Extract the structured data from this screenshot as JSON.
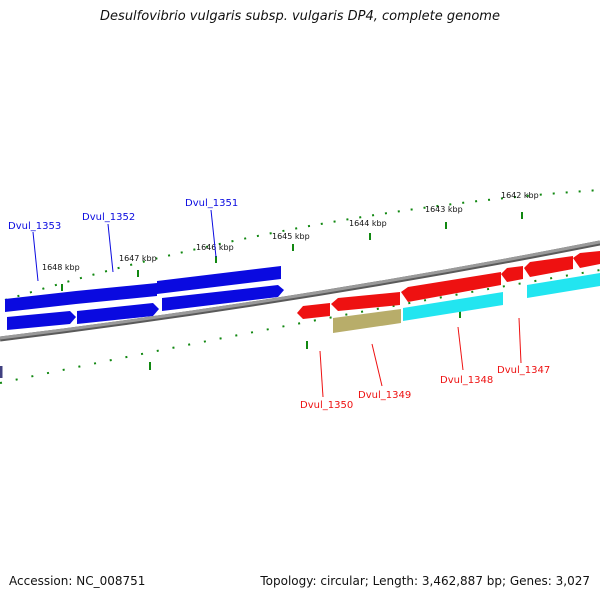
{
  "title": "Desulfovibrio vulgaris subsp. vulgaris DP4, complete genome",
  "footer": {
    "accession": "Accession: NC_008751",
    "stats": "Topology: circular; Length: 3,462,887 bp; Genes: 3,027"
  },
  "colors": {
    "forward_gene": "#0a0ae0",
    "reverse_gene": "#ee1111",
    "rna_gene": "#22e5f0",
    "other_gene": "#b8ad6a",
    "backbone": "#8a8a8a",
    "tick": "#118811"
  },
  "scale_labels": [
    "1648 kbp",
    "1647 kbp",
    "1646 kbp",
    "1645 kbp",
    "1644 kbp",
    "1643 kbp",
    "1642 kbp"
  ],
  "gene_labels": {
    "forward": [
      "Dvul_1353",
      "Dvul_1352",
      "Dvul_1351"
    ],
    "reverse": [
      "Dvul_1350",
      "Dvul_1349",
      "Dvul_1348",
      "Dvul_1347"
    ]
  }
}
